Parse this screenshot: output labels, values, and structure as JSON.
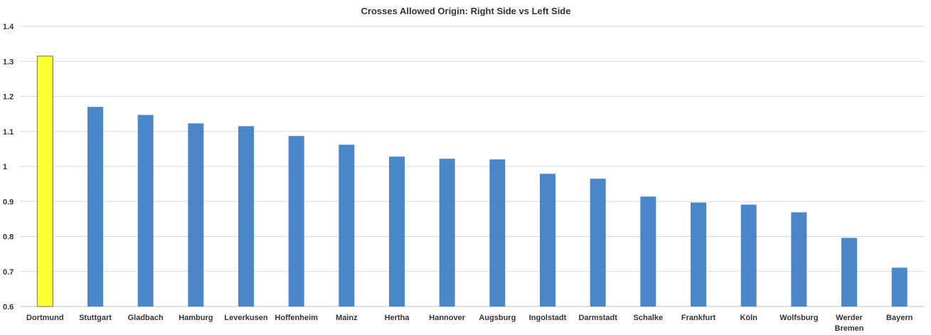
{
  "chart_data": {
    "type": "bar",
    "title": "Crosses Allowed Origin: Right Side vs Left Side",
    "xlabel": "",
    "ylabel": "",
    "ylim": [
      0.6,
      1.4
    ],
    "yticks": [
      "0.6",
      "0.7",
      "0.8",
      "0.9",
      "1",
      "1.1",
      "1.2",
      "1.3",
      "1.4"
    ],
    "grid": true,
    "legend": "none",
    "categories": [
      "Dortmund",
      "Stuttgart",
      "Gladbach",
      "Hamburg",
      "Leverkusen",
      "Hoffenheim",
      "Mainz",
      "Hertha",
      "Hannover",
      "Augsburg",
      "Ingolstadt",
      "Darmstadt",
      "Schalke",
      "Frankfurt",
      "Köln",
      "Wolfsburg",
      "Werder Bremen",
      "Bayern"
    ],
    "values": [
      1.315,
      1.17,
      1.147,
      1.123,
      1.115,
      1.087,
      1.062,
      1.028,
      1.022,
      1.02,
      0.979,
      0.965,
      0.914,
      0.897,
      0.891,
      0.869,
      0.796,
      0.711
    ],
    "colors": {
      "default": "#4a86c8",
      "highlight": "#ffff33",
      "highlight_border": "#6a7d2a"
    },
    "highlight_category": "Dortmund"
  }
}
